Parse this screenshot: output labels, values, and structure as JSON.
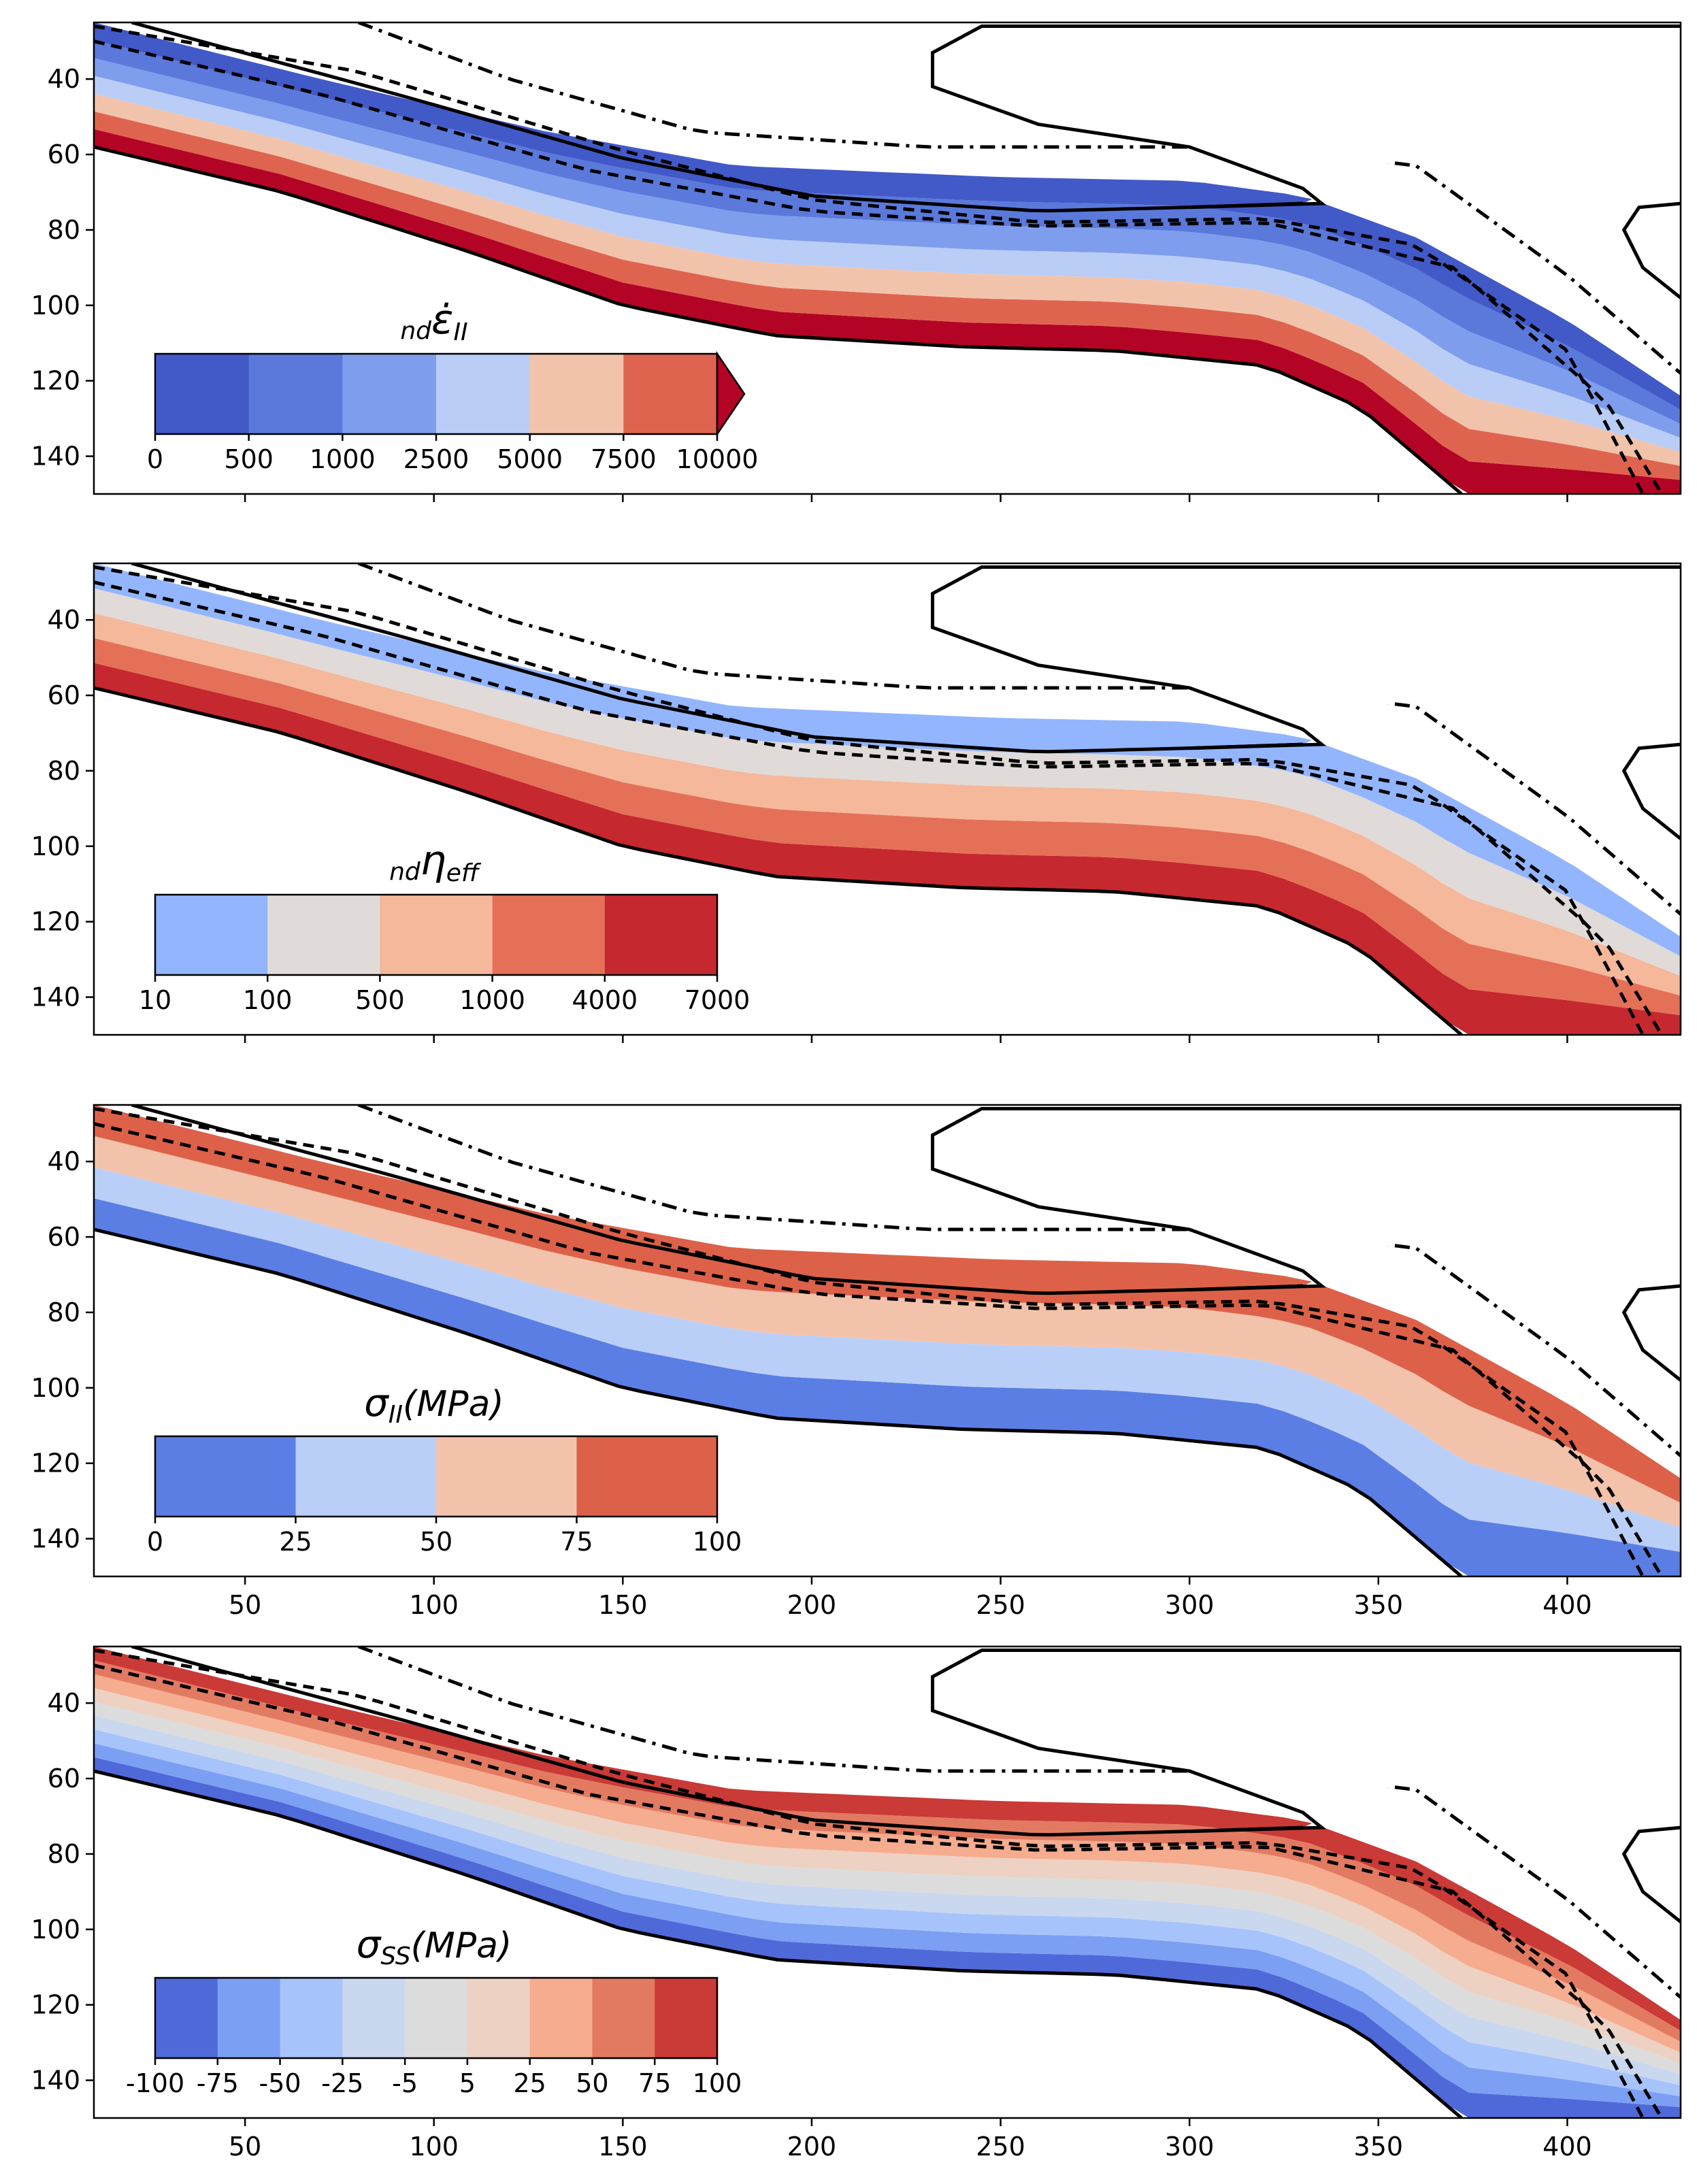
{
  "chart_data": [
    {
      "type": "heatmap",
      "quantity": "strain rate second invariant",
      "colorbar": {
        "title_main": "ε̇",
        "title_pre": "nd",
        "title_sub": "II",
        "ticks": [
          "0",
          "500",
          "1000",
          "2500",
          "5000",
          "7500",
          "10000"
        ],
        "colors": [
          "#4259c8",
          "#5a79db",
          "#7f9ded",
          "#b9cdf7",
          "#f2c3ab",
          "#df6450",
          "#b40426"
        ],
        "extend": "max"
      },
      "ylim": [
        150,
        25
      ],
      "xlim": [
        10,
        430
      ],
      "yticks": [
        40,
        60,
        80,
        100,
        120,
        140
      ],
      "xticks": [
        50,
        100,
        150,
        200,
        250,
        300,
        350,
        400
      ],
      "show_xtick_labels": false
    },
    {
      "type": "heatmap",
      "quantity": "effective viscosity",
      "colorbar": {
        "title_main": "η",
        "title_pre": "nd",
        "title_sub": "eff",
        "ticks": [
          "10",
          "100",
          "500",
          "1000",
          "4000",
          "7000"
        ],
        "colors": [
          "#93b5fe",
          "#e0dbd8",
          "#f5b89b",
          "#e57058",
          "#c6282f"
        ]
      },
      "ylim": [
        150,
        25
      ],
      "xlim": [
        10,
        430
      ],
      "yticks": [
        40,
        60,
        80,
        100,
        120,
        140
      ],
      "xticks": [
        50,
        100,
        150,
        200,
        250,
        300,
        350,
        400
      ],
      "show_xtick_labels": false
    },
    {
      "type": "heatmap",
      "quantity": "second invariant of stress",
      "colorbar": {
        "title_main": "σ",
        "title_sub": "II",
        "title_unit": "(MPa)",
        "ticks": [
          "0",
          "25",
          "50",
          "75",
          "100"
        ],
        "colors": [
          "#5b7ee5",
          "#b9cff8",
          "#f3c2aa",
          "#dd6149"
        ]
      },
      "ylim": [
        150,
        25
      ],
      "xlim": [
        10,
        430
      ],
      "yticks": [
        40,
        60,
        80,
        100,
        120,
        140
      ],
      "xticks": [
        50,
        100,
        150,
        200,
        250,
        300,
        350,
        400
      ],
      "show_xtick_labels": true
    },
    {
      "type": "heatmap",
      "quantity": "slab-parallel normal stress",
      "colorbar": {
        "title_main": "σ",
        "title_sub": "SS",
        "title_unit": "(MPa)",
        "ticks": [
          "-100",
          "-75",
          "-50",
          "-25",
          "-5",
          "5",
          "25",
          "50",
          "75",
          "100"
        ],
        "colors": [
          "#4f69d9",
          "#7b9ff2",
          "#a7c3fb",
          "#c9d7ef",
          "#dcdcdc",
          "#edd1c2",
          "#f5ac8f",
          "#e27a62",
          "#ca3a36"
        ]
      },
      "ylim": [
        150,
        25
      ],
      "xlim": [
        10,
        430
      ],
      "yticks": [
        40,
        60,
        80,
        100,
        120,
        140
      ],
      "xticks": [
        50,
        100,
        150,
        200,
        250,
        300,
        350,
        400
      ],
      "show_xtick_labels": true
    }
  ]
}
